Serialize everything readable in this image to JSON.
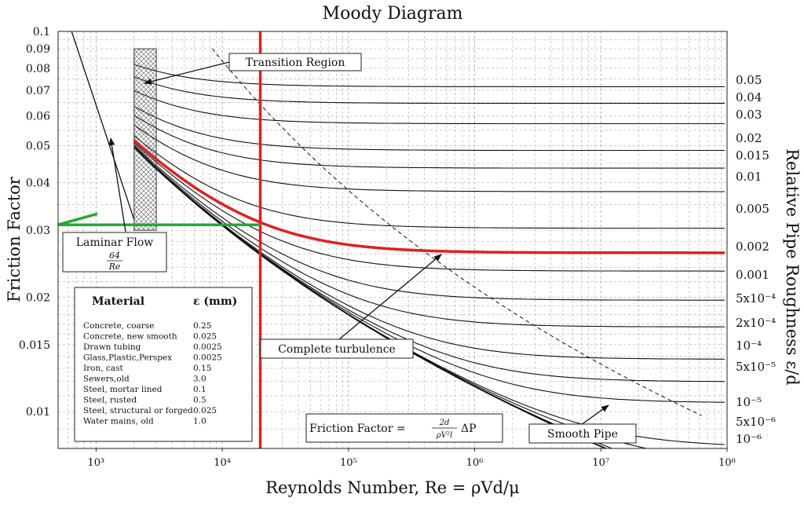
{
  "chart_data": {
    "type": "line",
    "title": "Moody Diagram",
    "xlabel": "Reynolds Number, Re = ρVd/μ",
    "ylabel": "Friction Factor",
    "y2label": "Relative Pipe Roughness ε/d",
    "x_scale": "log",
    "y_scale": "log",
    "xlim": [
      500,
      100000000
    ],
    "ylim": [
      0.008,
      0.1
    ],
    "grid": true,
    "x_ticks": [
      {
        "value": 1000,
        "label": "10³"
      },
      {
        "value": 10000,
        "label": "10⁴"
      },
      {
        "value": 100000,
        "label": "10⁵"
      },
      {
        "value": 1000000,
        "label": "10⁶"
      },
      {
        "value": 10000000,
        "label": "10⁷"
      },
      {
        "value": 100000000,
        "label": "10⁸"
      }
    ],
    "y_ticks": [
      {
        "value": 0.1,
        "label": "0.1"
      },
      {
        "value": 0.09,
        "label": "0.09"
      },
      {
        "value": 0.08,
        "label": "0.08"
      },
      {
        "value": 0.07,
        "label": "0.07"
      },
      {
        "value": 0.06,
        "label": "0.06"
      },
      {
        "value": 0.05,
        "label": "0.05"
      },
      {
        "value": 0.04,
        "label": "0.04"
      },
      {
        "value": 0.03,
        "label": "0.03"
      },
      {
        "value": 0.02,
        "label": "0.02"
      },
      {
        "value": 0.015,
        "label": "0.015"
      },
      {
        "value": 0.01,
        "label": "0.01"
      }
    ],
    "roughness_curves": [
      {
        "value": 0.05,
        "label": "0.05"
      },
      {
        "value": 0.04,
        "label": "0.04"
      },
      {
        "value": 0.03,
        "label": "0.03"
      },
      {
        "value": 0.02,
        "label": "0.02"
      },
      {
        "value": 0.015,
        "label": "0.015"
      },
      {
        "value": 0.01,
        "label": "0.01"
      },
      {
        "value": 0.005,
        "label": "0.005"
      },
      {
        "value": 0.002,
        "label": "0.002"
      },
      {
        "value": 0.001,
        "label": "0.001"
      },
      {
        "value": 0.0005,
        "label": "5x10⁻⁴"
      },
      {
        "value": 0.0002,
        "label": "2x10⁻⁴"
      },
      {
        "value": 0.0001,
        "label": "10⁻⁴"
      },
      {
        "value": 5e-05,
        "label": "5x10⁻⁵"
      },
      {
        "value": 1e-05,
        "label": "10⁻⁵"
      },
      {
        "value": 5e-06,
        "label": "5x10⁻⁶"
      },
      {
        "value": 1e-06,
        "label": "10⁻⁶"
      }
    ],
    "transition_region": {
      "re_min": 2000,
      "re_max": 3000,
      "f_min": 0.03,
      "f_max": 0.09
    },
    "highlight": {
      "color": "#e02020",
      "secondary_color": "#22aa33",
      "re": 20000,
      "f": 0.031,
      "relative_roughness": 0.003
    },
    "annotations": {
      "transition": "Transition Region",
      "laminar": "Laminar Flow",
      "laminar_num": "64",
      "laminar_den": "Re",
      "complete": "Complete turbulence",
      "smooth": "Smooth Pipe",
      "friction_formula_prefix": "Friction Factor =",
      "friction_formula_num": "2d",
      "friction_formula_den": "ρV²l",
      "friction_formula_suffix": "ΔP"
    }
  },
  "material_table": {
    "header_material": "Material",
    "header_eps": "ε (mm)",
    "rows": [
      {
        "name": "Concrete, coarse",
        "eps": "0.25"
      },
      {
        "name": "Concrete, new smooth",
        "eps": "0.025"
      },
      {
        "name": "Drawn tubing",
        "eps": "0.0025"
      },
      {
        "name": "Glass,Plastic,Perspex",
        "eps": "0.0025"
      },
      {
        "name": "Iron, cast",
        "eps": "0.15"
      },
      {
        "name": "Sewers,old",
        "eps": "3.0"
      },
      {
        "name": "Steel, mortar lined",
        "eps": "0.1"
      },
      {
        "name": "Steel, rusted",
        "eps": "0.5"
      },
      {
        "name": "Steel, structural or forged",
        "eps": "0.025"
      },
      {
        "name": "Water mains, old",
        "eps": "1.0"
      }
    ]
  }
}
